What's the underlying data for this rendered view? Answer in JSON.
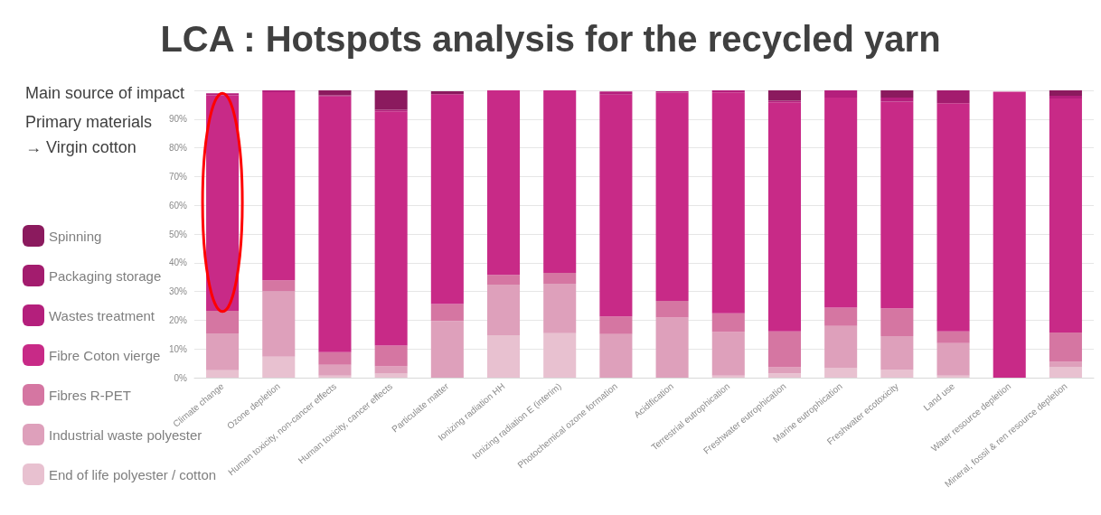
{
  "chart_data": {
    "type": "bar",
    "stacked": true,
    "title": "LCA : Hotspots analysis for the recycled yarn",
    "annotations": [
      "Main source of impact",
      "Primary materials",
      "→ Virgin cotton"
    ],
    "categories": [
      "Climate change",
      "Ozone depletion",
      "Human toxicity, non-cancer effects",
      "Human toxicity, cancer effects",
      "Particulate matter",
      "Ionizing radiation HH",
      "Ionizing radiation E (interim)",
      "Photochemical ozone formation",
      "Acidification",
      "Terrestrial eutrophication",
      "Freshwater eutrophication",
      "Marine eutrophication",
      "Freshwater ecotoxicity",
      "Land use",
      "Water resource depletion",
      "Mineral, fossil & ren resource depletion"
    ],
    "series": [
      {
        "name": "End of life polyester / cotton",
        "color": "#e8c1d0",
        "values": [
          2.6,
          7.3,
          0.7,
          1.4,
          null,
          14.8,
          15.5,
          null,
          null,
          0.7,
          1.5,
          3.3,
          2.7,
          0.7,
          null,
          3.8
        ]
      },
      {
        "name": "Industrial waste polyester",
        "color": "#dea0bb",
        "values": [
          12.8,
          22.7,
          3.8,
          2.5,
          19.7,
          17.6,
          17.2,
          15.2,
          20.9,
          15.2,
          2.1,
          14.7,
          11.8,
          11.3,
          0,
          1.7
        ]
      },
      {
        "name": "Fibres R-PET",
        "color": "#d576a2",
        "values": [
          7.9,
          3.9,
          4.4,
          7.3,
          5.9,
          3.4,
          3.8,
          6.1,
          5.8,
          6.5,
          12.5,
          6.4,
          9.6,
          4.1,
          0,
          10.2
        ]
      },
      {
        "name": "Fibre Coton vierge",
        "color": "#c82a87",
        "values": [
          75.0,
          65.5,
          89.0,
          81.5,
          73.1,
          64.2,
          63.5,
          77.2,
          72.5,
          76.9,
          79.7,
          73.1,
          72.0,
          79.4,
          99.5,
          81.5
        ]
      },
      {
        "name": "Wastes treatment",
        "color": "#b41f7c",
        "values": [
          0.7,
          0.6,
          0.4,
          0.5,
          0,
          0,
          0,
          1.1,
          0.5,
          0.7,
          0.6,
          2.5,
          1.4,
          0,
          0,
          0.9
        ]
      },
      {
        "name": "Packaging storage",
        "color": "#a31c6e",
        "values": [
          0,
          0,
          0,
          0,
          0,
          0,
          0,
          0,
          0,
          0,
          0,
          0,
          0,
          4.5,
          0,
          0
        ]
      },
      {
        "name": "Spinning",
        "color": "#8b1a5e",
        "values": [
          0,
          0,
          1.7,
          6.8,
          1.0,
          0,
          0,
          0,
          0,
          0,
          3.6,
          0,
          2.5,
          0,
          0,
          1.9
        ]
      }
    ],
    "ylim": [
      0,
      100
    ],
    "yticks": [
      {
        "value": 0,
        "label": "0%"
      },
      {
        "value": 10,
        "label": "10%"
      },
      {
        "value": 20,
        "label": "20%"
      },
      {
        "value": 30,
        "label": "30%"
      },
      {
        "value": 40,
        "label": "40%"
      },
      {
        "value": 50,
        "label": "50%"
      },
      {
        "value": 60,
        "label": "60%"
      },
      {
        "value": 70,
        "label": "70%"
      },
      {
        "value": 80,
        "label": "80%"
      },
      {
        "value": 90,
        "label": "90%"
      },
      {
        "value": 100,
        "label": null
      }
    ],
    "grid": "y",
    "legend": "left"
  }
}
